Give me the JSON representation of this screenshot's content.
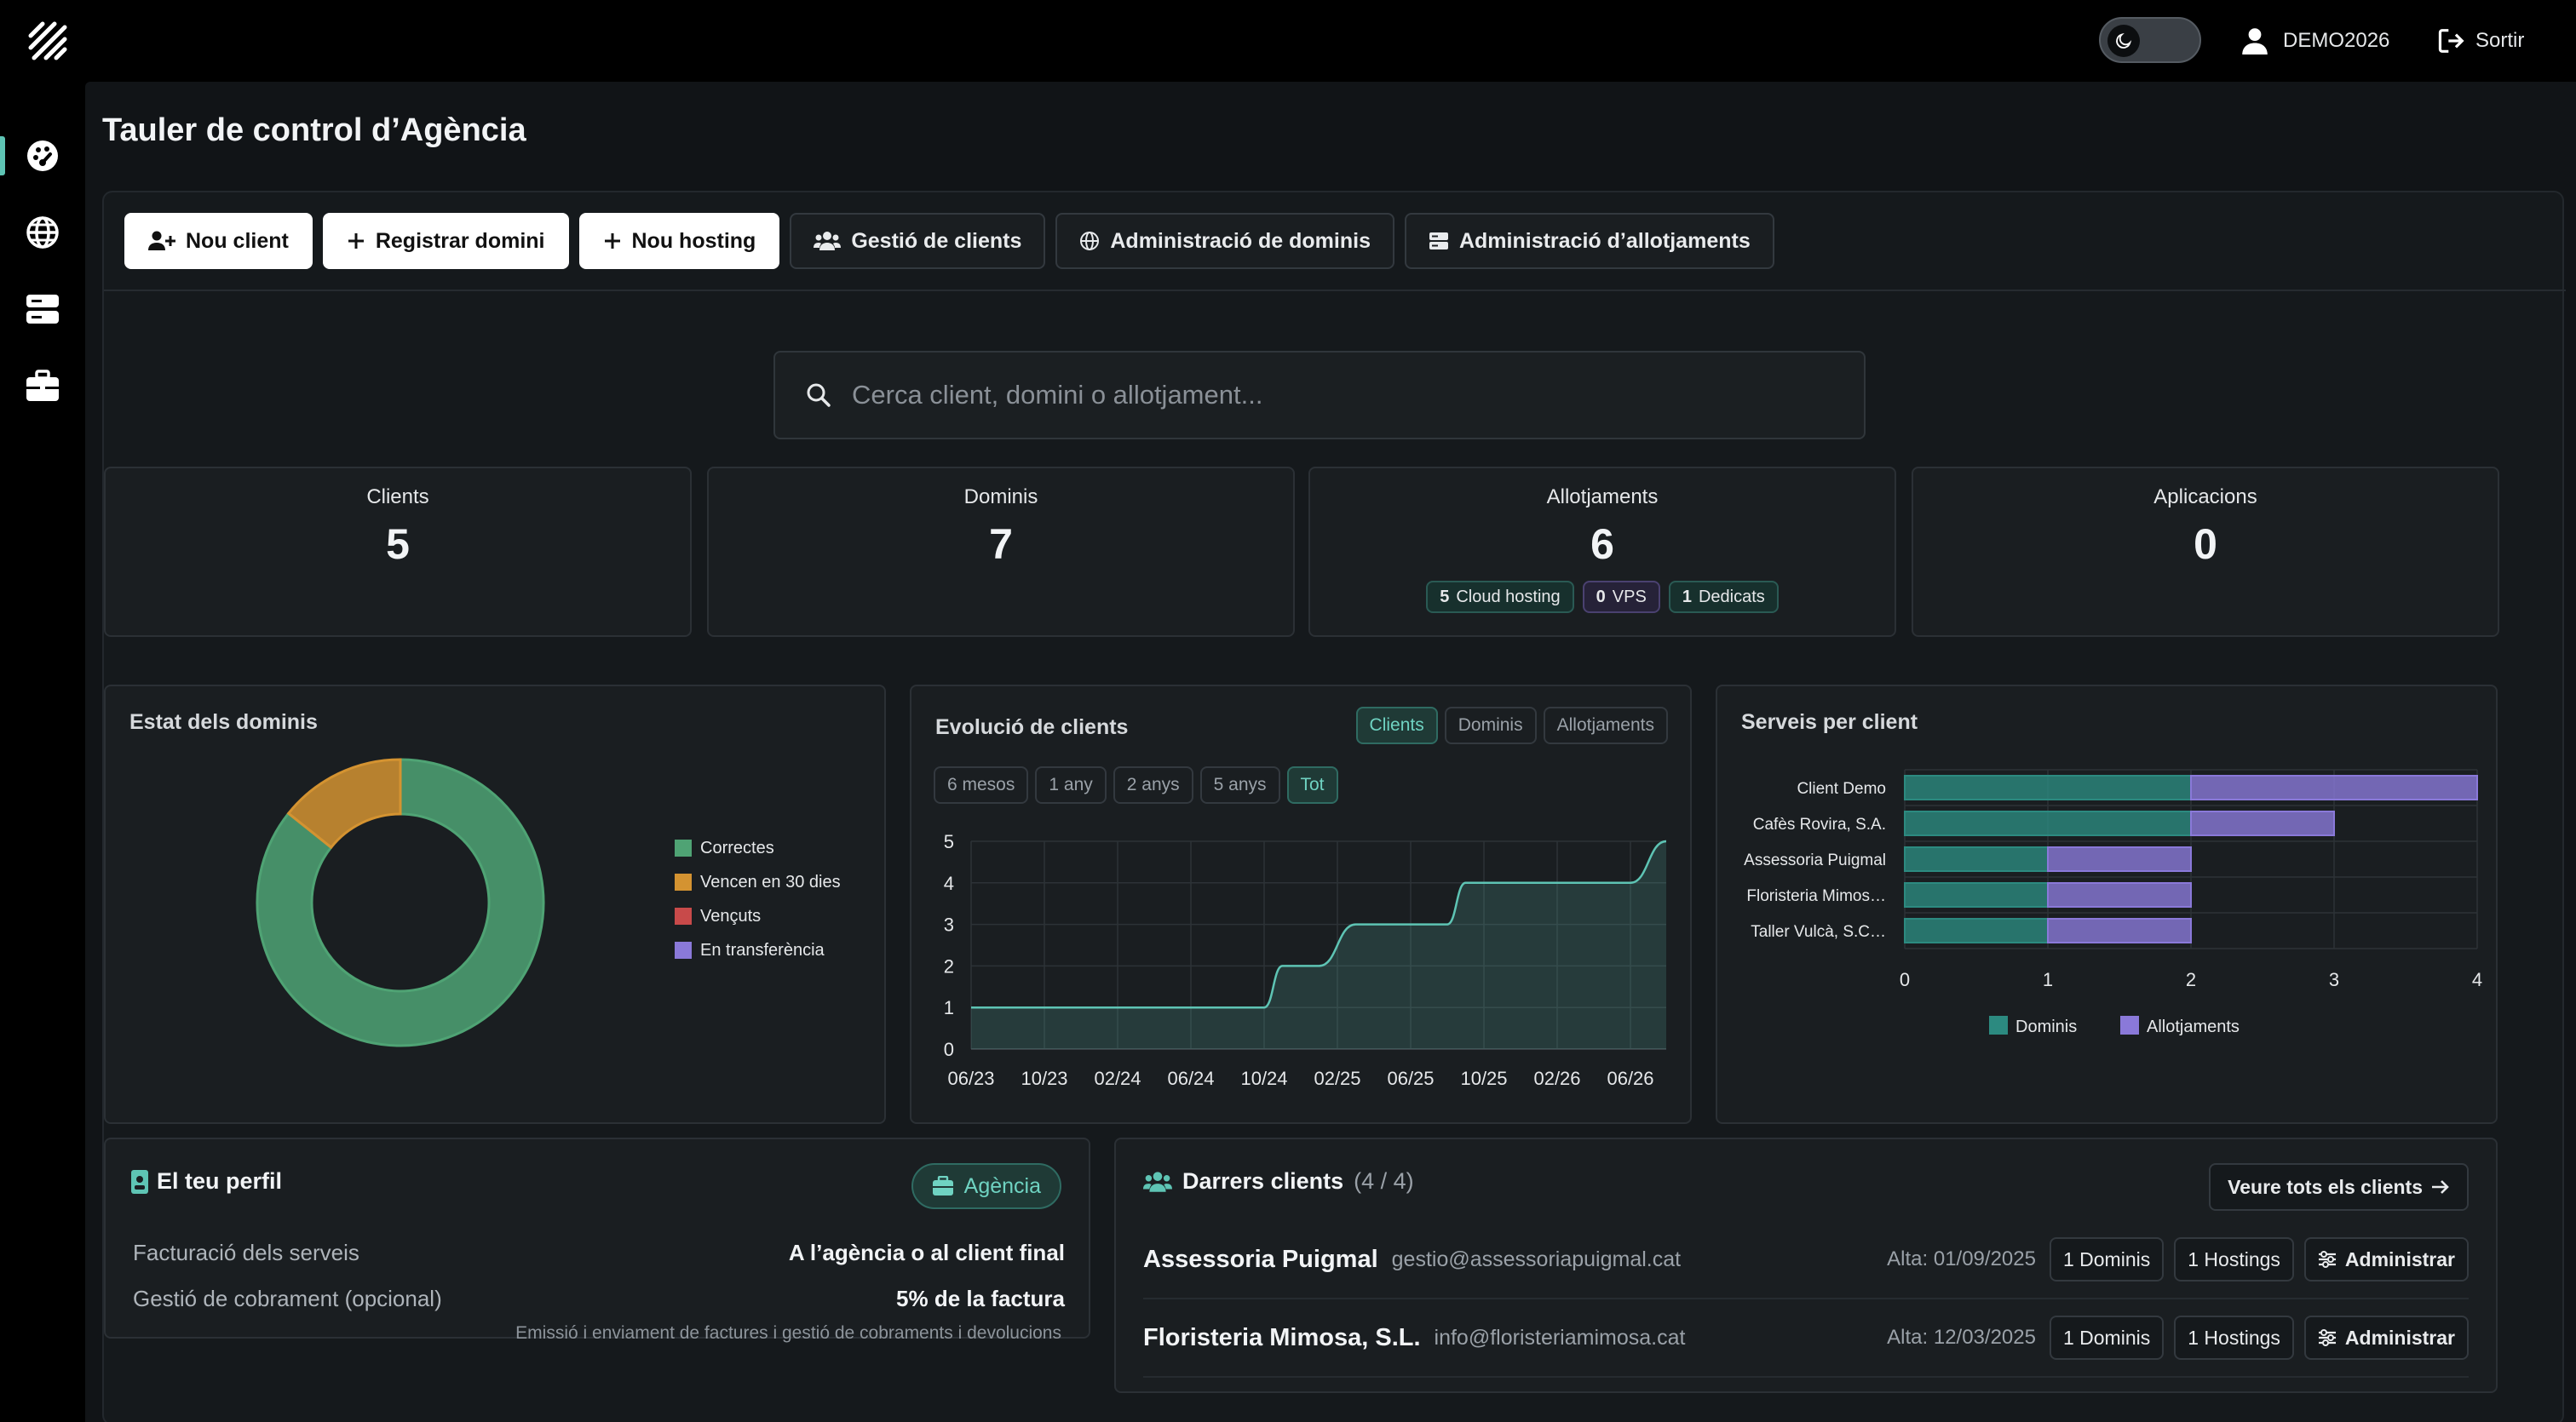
{
  "topbar": {
    "logo_icon": "brand-logo-icon",
    "theme_icon": "moon-icon",
    "username": "DEMO2026",
    "logout_label": "Sortir"
  },
  "sidebar": {
    "items": [
      {
        "icon": "dashboard-icon",
        "active": true
      },
      {
        "icon": "globe-icon",
        "active": false
      },
      {
        "icon": "server-icon",
        "active": false
      },
      {
        "icon": "briefcase-icon",
        "active": false
      }
    ]
  },
  "page": {
    "title": "Tauler de control d’Agència"
  },
  "actions": {
    "new_client": "Nou client",
    "register_domain": "Registrar domini",
    "new_hosting": "Nou hosting",
    "client_mgmt": "Gestió de clients",
    "domain_admin": "Administració de dominis",
    "hosting_admin": "Administració d’allotjaments"
  },
  "search": {
    "placeholder": "Cerca client, domini o allotjament..."
  },
  "stats": {
    "clients": {
      "label": "Clients",
      "value": "5"
    },
    "domains": {
      "label": "Dominis",
      "value": "7"
    },
    "hostings": {
      "label": "Allotjaments",
      "value": "6",
      "chips": [
        {
          "count": "5",
          "label": "Cloud hosting",
          "color": "#5ec4b4"
        },
        {
          "count": "0",
          "label": "VPS",
          "color": "#9b86e0"
        },
        {
          "count": "1",
          "label": "Dedicats",
          "color": "#5ec4b4"
        }
      ]
    },
    "apps": {
      "label": "Aplicacions",
      "value": "0"
    }
  },
  "colors": {
    "accent": "#5ec4b4",
    "green": "#4fa374",
    "orange": "#d49331",
    "red": "#c84a4a",
    "purple": "#8a79d9",
    "teal_bar": "#2c8a80"
  },
  "chart_data": [
    {
      "type": "pie",
      "title": "Estat dels dominis",
      "legend": [
        "Correctes",
        "Vencen en 30 dies",
        "Vençuts",
        "En transferència"
      ],
      "values": [
        6,
        1,
        0,
        0
      ],
      "colors": [
        "#4fa374",
        "#d49331",
        "#c84a4a",
        "#8a79d9"
      ],
      "legend_position": "right"
    },
    {
      "type": "area",
      "title": "Evolució de clients",
      "tabs": [
        "Clients",
        "Dominis",
        "Allotjaments"
      ],
      "active_tab": "Clients",
      "ranges": [
        "6 mesos",
        "1 any",
        "2 anys",
        "5 anys",
        "Tot"
      ],
      "active_range": "Tot",
      "x_ticks": [
        "06/23",
        "10/23",
        "02/24",
        "06/24",
        "10/24",
        "02/25",
        "06/25",
        "10/25",
        "02/26",
        "06/26"
      ],
      "y_ticks": [
        "0",
        "1",
        "2",
        "3",
        "4",
        "5"
      ],
      "ylim": [
        0,
        5
      ],
      "points": [
        {
          "x": "06/23",
          "y": 1
        },
        {
          "x": "10/24",
          "y": 1
        },
        {
          "x": "11/24",
          "y": 2
        },
        {
          "x": "01/25",
          "y": 2
        },
        {
          "x": "03/25",
          "y": 3
        },
        {
          "x": "08/25",
          "y": 3
        },
        {
          "x": "09/25",
          "y": 4
        },
        {
          "x": "06/26",
          "y": 4
        },
        {
          "x": "08/26",
          "y": 5
        }
      ],
      "grid": true
    },
    {
      "type": "bar",
      "orientation": "horizontal",
      "stacked": true,
      "title": "Serveis per client",
      "categories": [
        "Client Demo",
        "Cafès Rovira, S.A.",
        "Assessoria Puigmal",
        "Floristeria Mimos…",
        "Taller Vulcà, S.C…"
      ],
      "series": [
        {
          "name": "Dominis",
          "values": [
            2,
            2,
            1,
            1,
            1
          ],
          "color": "#2c8a80"
        },
        {
          "name": "Allotjaments",
          "values": [
            2,
            1,
            1,
            1,
            1
          ],
          "color": "#8a79d9"
        }
      ],
      "x_ticks": [
        "0",
        "1",
        "2",
        "3",
        "4"
      ],
      "xlim": [
        0,
        4
      ],
      "legend_position": "bottom",
      "grid": true
    }
  ],
  "profile": {
    "title": "El teu perfil",
    "badge": "Agència",
    "billing_label": "Facturació dels serveis",
    "billing_value": "A l’agència o al client final",
    "collection_label": "Gestió de cobrament (opcional)",
    "collection_value": "5% de la factura",
    "note": "Emissió i enviament de factures i gestió de cobraments i devolucions"
  },
  "recent_clients": {
    "title": "Darrers clients",
    "count": "(4 / 4)",
    "view_all": "Veure tots els clients",
    "rows": [
      {
        "name": "Assessoria Puigmal",
        "email": "gestio@assessoriapuigmal.cat",
        "alta": "Alta: 01/09/2025",
        "domains": "1 Dominis",
        "hostings": "1 Hostings",
        "admin": "Administrar"
      },
      {
        "name": "Floristeria Mimosa, S.L.",
        "email": "info@floristeriamimosa.cat",
        "alta": "Alta: 12/03/2025",
        "domains": "1 Dominis",
        "hostings": "1 Hostings",
        "admin": "Administrar"
      }
    ]
  }
}
